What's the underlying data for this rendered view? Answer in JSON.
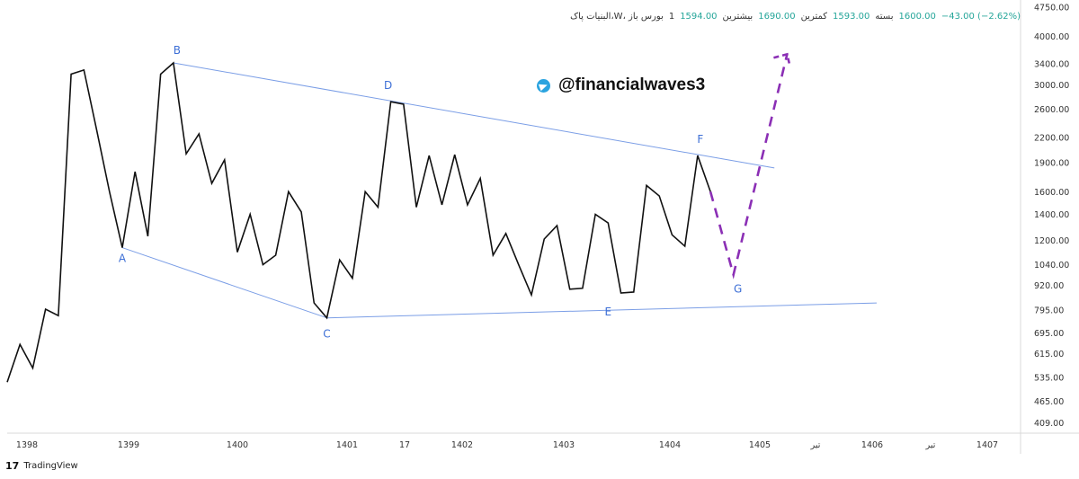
{
  "header": {
    "symbol": "البنیات پاک،W، بورس باز",
    "open": "1594.00",
    "high_label": "بیشترین",
    "high": "1690.00",
    "low_label": "کمترین",
    "low": "1593.00",
    "close_label": "بسته",
    "close": "1600.00",
    "change": "−43.00 (−2.62%)",
    "interval": "1"
  },
  "watermark": "@financialwaves3",
  "footer": {
    "brand": "TradingView",
    "logo_text": "17"
  },
  "colors": {
    "price": "#111111",
    "trendline": "#7b9ee6",
    "projection": "#8b2fb5",
    "point_label": "#3d6fd6",
    "axis_text": "#333333"
  },
  "chart_data": {
    "type": "line",
    "y_scale": "log",
    "ylim": [
      385,
      4750
    ],
    "x_ticks": [
      "1398",
      "1399",
      "1400",
      "1401",
      "17",
      "1402",
      "1403",
      "1404",
      "1405",
      "تیر",
      "1406",
      "تیر",
      "1407"
    ],
    "y_ticks": [
      "4750.00",
      "4000.00",
      "3400.00",
      "3000.00",
      "2600.00",
      "2200.00",
      "1900.00",
      "1600.00",
      "1400.00",
      "1200.00",
      "1040.00",
      "920.00",
      "795.00",
      "695.00",
      "615.00",
      "535.00",
      "465.00",
      "409.00"
    ],
    "series": [
      {
        "role": "price",
        "points": [
          [
            0,
            520
          ],
          [
            1,
            650
          ],
          [
            2,
            565
          ],
          [
            3,
            800
          ],
          [
            4,
            770
          ],
          [
            5,
            3200
          ],
          [
            6,
            3280
          ],
          [
            7,
            2300
          ],
          [
            8,
            1600
          ],
          [
            9,
            1150
          ],
          [
            10,
            1800
          ],
          [
            11,
            1230
          ],
          [
            12,
            3200
          ],
          [
            13,
            3420
          ],
          [
            14,
            2000
          ],
          [
            15,
            2250
          ],
          [
            16,
            1680
          ],
          [
            17,
            1930
          ],
          [
            18,
            1120
          ],
          [
            19,
            1400
          ],
          [
            20,
            1040
          ],
          [
            21,
            1100
          ],
          [
            22,
            1600
          ],
          [
            23,
            1420
          ],
          [
            24,
            830
          ],
          [
            25,
            760
          ],
          [
            26,
            1070
          ],
          [
            27,
            960
          ],
          [
            28,
            1600
          ],
          [
            29,
            1460
          ],
          [
            30,
            2720
          ],
          [
            31,
            2680
          ],
          [
            32,
            1460
          ],
          [
            33,
            1980
          ],
          [
            34,
            1480
          ],
          [
            35,
            1990
          ],
          [
            36,
            1480
          ],
          [
            37,
            1730
          ],
          [
            38,
            1100
          ],
          [
            39,
            1250
          ],
          [
            40,
            1040
          ],
          [
            41,
            870
          ],
          [
            42,
            1210
          ],
          [
            43,
            1310
          ],
          [
            44,
            900
          ],
          [
            45,
            905
          ],
          [
            46,
            1400
          ],
          [
            47,
            1330
          ],
          [
            48,
            880
          ],
          [
            49,
            885
          ],
          [
            50,
            1660
          ],
          [
            51,
            1560
          ],
          [
            52,
            1240
          ],
          [
            53,
            1160
          ],
          [
            54,
            1980
          ],
          [
            55,
            1600
          ]
        ]
      },
      {
        "role": "projection",
        "points": [
          [
            55,
            1600
          ],
          [
            56.8,
            980
          ],
          [
            61,
            3600
          ]
        ]
      }
    ],
    "trendlines": [
      {
        "from": [
          13,
          3420
        ],
        "to": [
          60,
          1840
        ]
      },
      {
        "from": [
          9,
          1150
        ],
        "to": [
          25,
          760
        ]
      },
      {
        "from": [
          25,
          760
        ],
        "to": [
          68,
          830
        ]
      }
    ],
    "annotations": [
      {
        "label": "A",
        "x": 9,
        "y": 1150
      },
      {
        "label": "B",
        "x": 13,
        "y": 3420
      },
      {
        "label": "C",
        "x": 25,
        "y": 760
      },
      {
        "label": "D",
        "x": 30,
        "y": 2720
      },
      {
        "label": "E",
        "x": 47,
        "y": 840
      },
      {
        "label": "F",
        "x": 54,
        "y": 1980
      },
      {
        "label": "G",
        "x": 56.8,
        "y": 980
      }
    ]
  }
}
